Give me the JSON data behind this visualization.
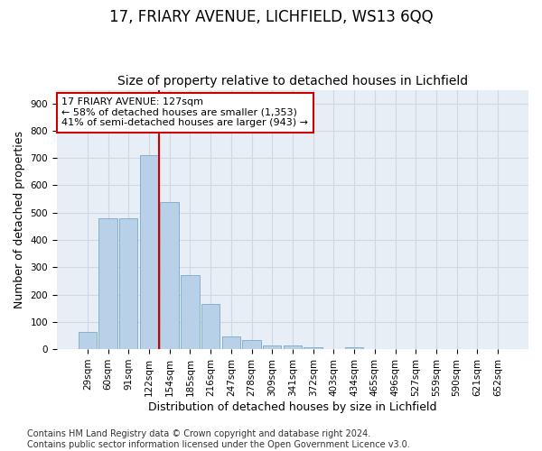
{
  "title": "17, FRIARY AVENUE, LICHFIELD, WS13 6QQ",
  "subtitle": "Size of property relative to detached houses in Lichfield",
  "xlabel": "Distribution of detached houses by size in Lichfield",
  "ylabel": "Number of detached properties",
  "categories": [
    "29sqm",
    "60sqm",
    "91sqm",
    "122sqm",
    "154sqm",
    "185sqm",
    "216sqm",
    "247sqm",
    "278sqm",
    "309sqm",
    "341sqm",
    "372sqm",
    "403sqm",
    "434sqm",
    "465sqm",
    "496sqm",
    "527sqm",
    "559sqm",
    "590sqm",
    "621sqm",
    "652sqm"
  ],
  "values": [
    63,
    480,
    480,
    710,
    540,
    270,
    165,
    47,
    32,
    15,
    13,
    8,
    0,
    7,
    0,
    0,
    0,
    0,
    0,
    0,
    0
  ],
  "bar_color": "#b8d0e8",
  "bar_edge_color": "#7aaac8",
  "vline_x": 3.5,
  "vline_color": "#cc0000",
  "annotation_text": "17 FRIARY AVENUE: 127sqm\n← 58% of detached houses are smaller (1,353)\n41% of semi-detached houses are larger (943) →",
  "annotation_box_color": "#ffffff",
  "annotation_box_edge": "#cc0000",
  "ylim": [
    0,
    950
  ],
  "yticks": [
    0,
    100,
    200,
    300,
    400,
    500,
    600,
    700,
    800,
    900
  ],
  "footer": "Contains HM Land Registry data © Crown copyright and database right 2024.\nContains public sector information licensed under the Open Government Licence v3.0.",
  "bg_color": "#ffffff",
  "plot_bg_color": "#e8eef5",
  "grid_color": "#d0d8e4",
  "title_fontsize": 12,
  "subtitle_fontsize": 10,
  "axis_label_fontsize": 9,
  "tick_fontsize": 7.5,
  "footer_fontsize": 7,
  "annotation_fontsize": 8
}
